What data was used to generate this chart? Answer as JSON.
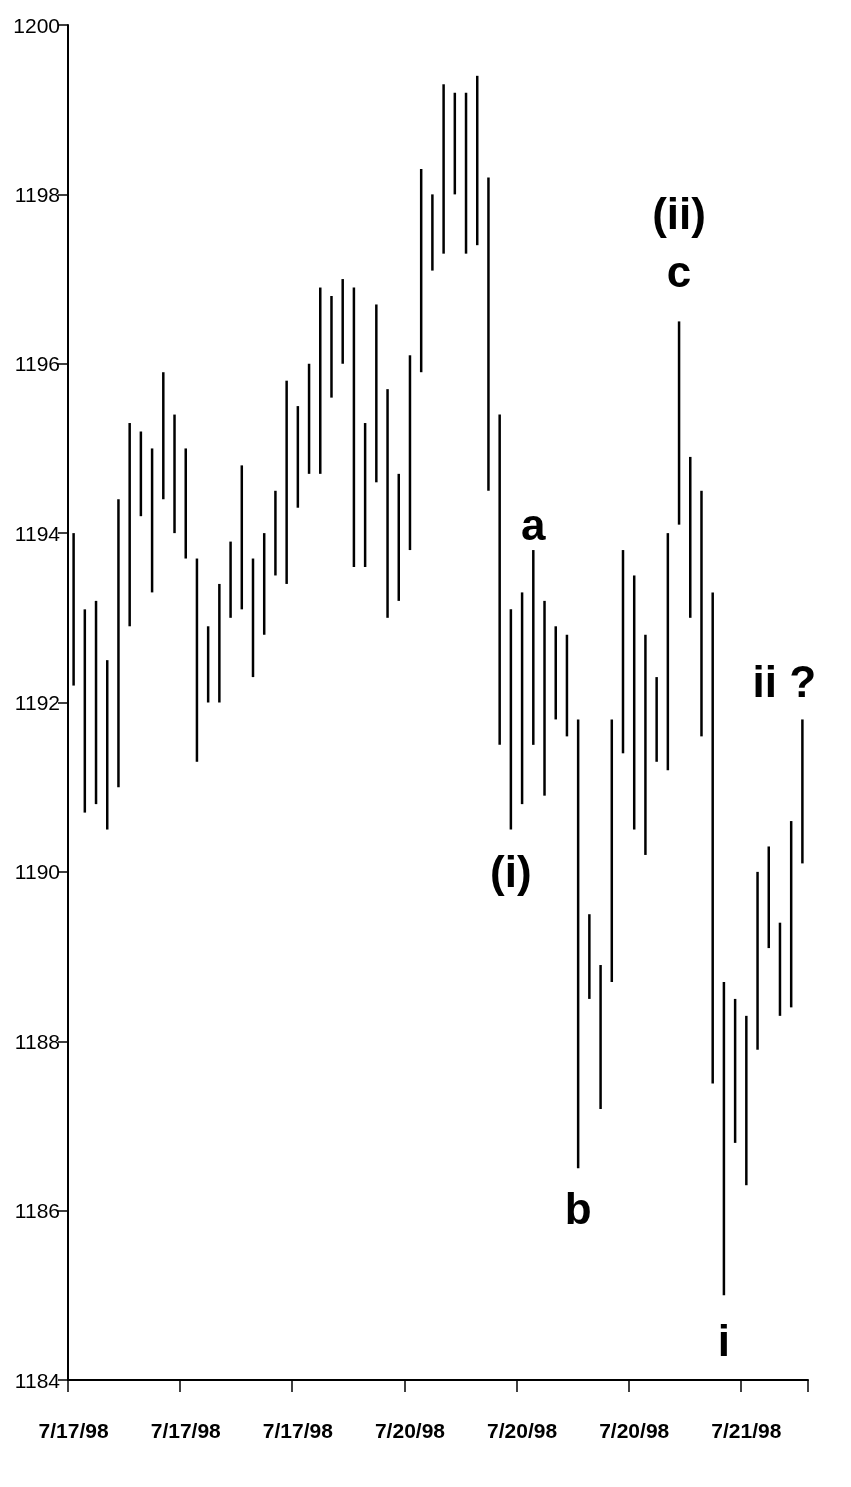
{
  "chart_data": {
    "type": "bar",
    "color": "#000000",
    "categories": [
      "7/17/98",
      null,
      null,
      null,
      null,
      null,
      null,
      null,
      null,
      null,
      "7/17/98",
      null,
      null,
      null,
      null,
      null,
      null,
      null,
      null,
      null,
      "7/17/98",
      null,
      null,
      null,
      null,
      null,
      null,
      null,
      null,
      null,
      "7/20/98",
      null,
      null,
      null,
      null,
      null,
      null,
      null,
      null,
      null,
      "7/20/98",
      null,
      null,
      null,
      null,
      null,
      null,
      null,
      null,
      null,
      "7/20/98",
      null,
      null,
      null,
      null,
      null,
      null,
      null,
      null,
      null,
      "7/21/98",
      null,
      null,
      null,
      null,
      null
    ],
    "base": [
      1192.2,
      1190.7,
      1190.8,
      1190.5,
      1191.0,
      1192.9,
      1194.2,
      1193.3,
      1194.4,
      1194.0,
      1193.7,
      1191.3,
      1192.0,
      1192.0,
      1193.0,
      1193.1,
      1192.3,
      1192.8,
      1193.5,
      1193.4,
      1194.3,
      1194.7,
      1194.7,
      1195.6,
      1196.0,
      1193.6,
      1193.6,
      1194.6,
      1193.0,
      1193.2,
      1193.8,
      1195.9,
      1197.1,
      1197.3,
      1198.0,
      1197.3,
      1197.4,
      1194.5,
      1191.5,
      1190.5,
      1190.8,
      1191.5,
      1190.9,
      1191.8,
      1191.6,
      1186.5,
      1188.5,
      1187.2,
      1188.7,
      1191.4,
      1190.5,
      1190.2,
      1191.3,
      1191.2,
      1194.1,
      1193.0,
      1191.6,
      1187.5,
      1185.0,
      1186.8,
      1186.3,
      1187.9,
      1189.1,
      1188.3,
      1188.4,
      1190.1
    ],
    "values": [
      1.8,
      2.4,
      2.4,
      2.0,
      3.4,
      2.4,
      1.0,
      1.7,
      1.5,
      1.4,
      1.3,
      2.4,
      0.9,
      1.4,
      0.9,
      1.7,
      1.4,
      1.2,
      1.0,
      2.4,
      1.2,
      1.3,
      2.2,
      1.2,
      1.0,
      3.3,
      1.7,
      2.1,
      2.7,
      1.5,
      2.3,
      2.4,
      0.9,
      2.0,
      1.2,
      1.9,
      2.0,
      3.7,
      3.9,
      2.6,
      2.5,
      2.3,
      2.3,
      1.1,
      1.2,
      5.3,
      1.0,
      1.7,
      3.1,
      2.4,
      3.0,
      2.6,
      1.0,
      2.8,
      2.4,
      1.9,
      2.9,
      5.8,
      3.7,
      1.7,
      2.0,
      2.1,
      1.2,
      1.1,
      2.2,
      1.7
    ],
    "ylim": [
      1184,
      1200
    ],
    "yticks": [
      1184,
      1186,
      1188,
      1190,
      1192,
      1194,
      1196,
      1198,
      1200
    ],
    "grid": false,
    "annotations": [
      "(i)",
      "a",
      "b",
      "(ii)",
      "c",
      "i",
      "ii ?"
    ]
  }
}
